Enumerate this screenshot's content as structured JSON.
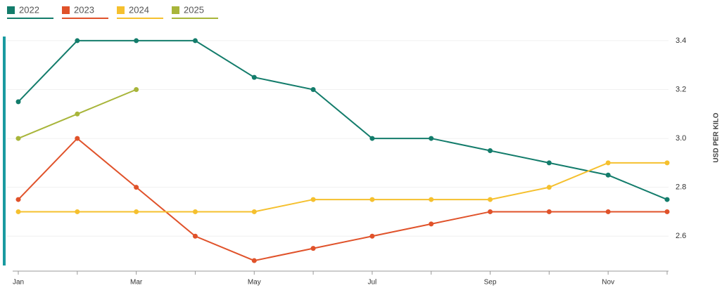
{
  "chart_data": {
    "type": "line",
    "categories": [
      "Jan",
      null,
      "Mar",
      null,
      "May",
      null,
      "Jul",
      null,
      "Sep",
      null,
      "Nov",
      null
    ],
    "series": [
      {
        "name": "2022",
        "color": "#137c6b",
        "values": [
          3.15,
          3.4,
          3.4,
          3.4,
          3.25,
          3.2,
          3.0,
          3.0,
          2.95,
          2.9,
          2.85,
          2.75
        ]
      },
      {
        "name": "2023",
        "color": "#e0522a",
        "values": [
          2.75,
          3.0,
          2.8,
          2.6,
          2.5,
          2.55,
          2.6,
          2.65,
          2.7,
          2.7,
          2.7,
          2.7
        ]
      },
      {
        "name": "2024",
        "color": "#f5c02e",
        "values": [
          2.7,
          2.7,
          2.7,
          2.7,
          2.7,
          2.75,
          2.75,
          2.75,
          2.75,
          2.8,
          2.9,
          2.9
        ]
      },
      {
        "name": "2025",
        "color": "#a8b53a",
        "values": [
          3.0,
          3.1,
          3.2,
          null,
          null,
          null,
          null,
          null,
          null,
          null,
          null,
          null
        ]
      }
    ],
    "y_axis_label": "USD PER KILO",
    "ylim": [
      2.48,
      3.44
    ],
    "yticks": [
      2.6,
      2.8,
      {
        "value": 3,
        "label": "3.0"
      },
      3.2,
      3.4
    ],
    "grid": true
  }
}
